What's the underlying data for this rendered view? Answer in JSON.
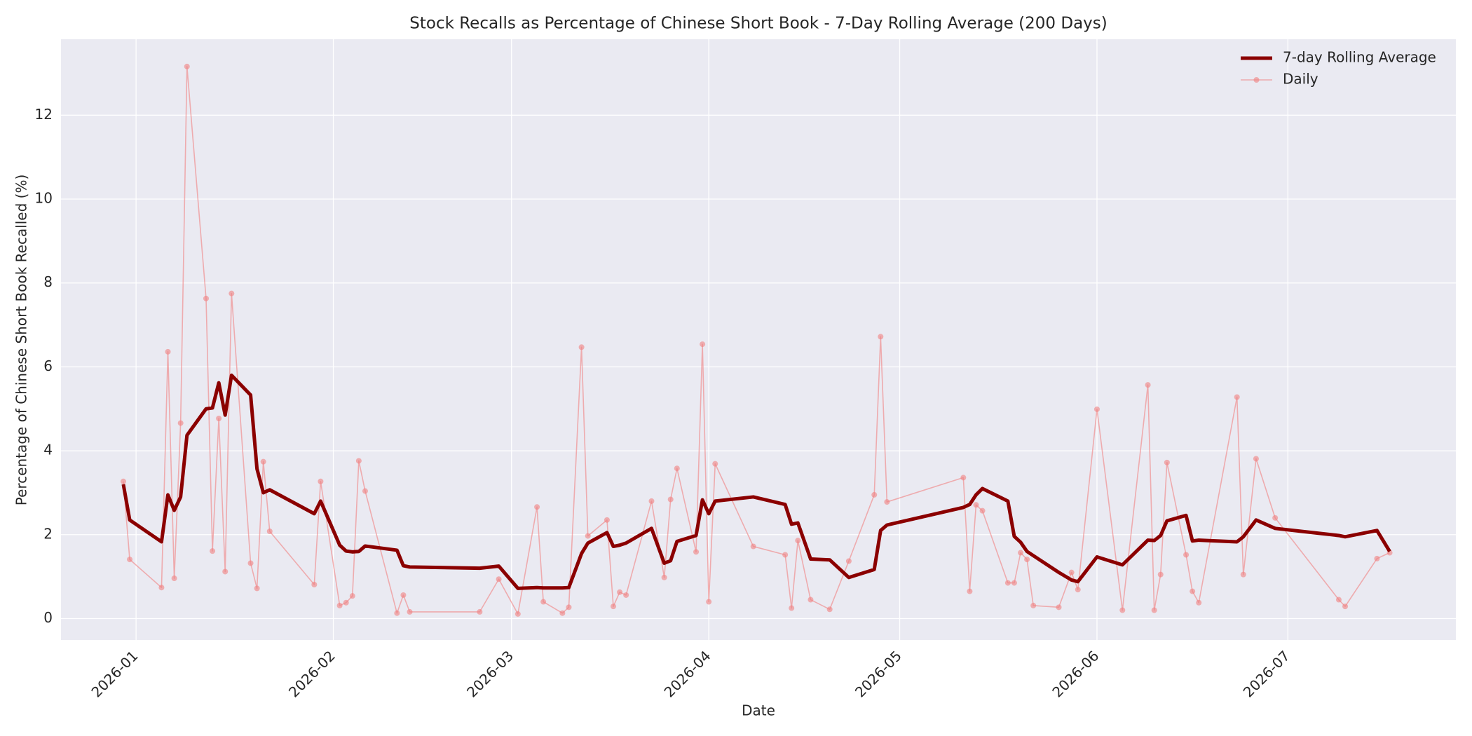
{
  "chart_data": {
    "type": "line",
    "title": "Stock Recalls as Percentage of Chinese Short Book - 7-Day Rolling Average (200 Days)",
    "x_label": "Date",
    "y_label": "Percentage of Chinese Short Book Recalled (%)",
    "x": [
      -2,
      -1,
      4,
      5,
      6,
      7,
      8,
      11,
      12,
      13,
      14,
      15,
      18,
      19,
      20,
      21,
      28,
      29,
      32,
      33,
      34,
      35,
      36,
      41,
      42,
      43,
      54,
      57,
      60,
      63,
      64,
      67,
      68,
      70,
      71,
      74,
      75,
      76,
      77,
      81,
      83,
      84,
      85,
      88,
      89,
      90,
      91,
      97,
      102,
      103,
      104,
      106,
      109,
      112,
      116,
      117,
      118,
      130,
      131,
      132,
      133,
      137,
      138,
      139,
      140,
      141,
      145,
      147,
      148,
      151,
      155,
      159,
      160,
      161,
      162,
      165,
      166,
      167,
      173,
      174,
      176,
      179,
      189,
      190,
      195,
      197
    ],
    "series": [
      {
        "name": "7-day Rolling Average",
        "color": "#8b0000",
        "width": 5,
        "markers": false,
        "values": [
          3.2,
          2.35,
          1.83,
          2.95,
          2.58,
          2.9,
          4.37,
          5.0,
          5.02,
          5.62,
          4.85,
          5.8,
          5.33,
          3.57,
          3.0,
          3.07,
          2.5,
          2.8,
          1.75,
          1.61,
          1.59,
          1.6,
          1.73,
          1.63,
          1.26,
          1.23,
          1.2,
          1.25,
          0.72,
          0.74,
          0.73,
          0.73,
          0.74,
          1.55,
          1.8,
          2.05,
          1.72,
          1.75,
          1.8,
          2.15,
          1.32,
          1.38,
          1.84,
          1.98,
          2.83,
          2.5,
          2.8,
          2.9,
          2.72,
          2.25,
          2.28,
          1.42,
          1.4,
          0.98,
          1.17,
          2.1,
          2.23,
          2.65,
          2.72,
          2.95,
          3.1,
          2.8,
          1.96,
          1.82,
          1.6,
          1.5,
          1.1,
          0.92,
          0.88,
          1.47,
          1.28,
          1.87,
          1.86,
          1.98,
          2.33,
          2.46,
          1.85,
          1.87,
          1.83,
          1.95,
          2.35,
          2.15,
          1.98,
          1.95,
          2.1,
          1.6
        ]
      },
      {
        "name": "Daily",
        "color": "#f08080",
        "width": 1.6,
        "markers": true,
        "values": [
          3.27,
          1.41,
          0.74,
          6.36,
          0.96,
          4.66,
          13.16,
          7.63,
          1.61,
          4.77,
          1.12,
          7.75,
          1.32,
          0.72,
          3.74,
          2.08,
          0.81,
          3.27,
          0.31,
          0.38,
          0.54,
          3.76,
          3.04,
          0.13,
          0.56,
          0.16,
          0.16,
          0.94,
          0.11,
          2.66,
          0.4,
          0.13,
          0.27,
          6.47,
          1.97,
          2.35,
          0.29,
          0.63,
          0.56,
          2.8,
          0.98,
          2.84,
          3.58,
          1.59,
          6.54,
          0.4,
          3.69,
          1.72,
          1.52,
          0.25,
          1.86,
          0.45,
          0.22,
          1.37,
          2.95,
          6.72,
          2.78,
          3.36,
          0.65,
          2.71,
          2.57,
          0.85,
          0.85,
          1.57,
          1.41,
          0.31,
          0.27,
          1.1,
          0.69,
          4.99,
          0.2,
          5.57,
          0.2,
          1.05,
          3.72,
          1.52,
          0.65,
          0.38,
          5.28,
          1.05,
          3.81,
          2.4,
          0.45,
          0.29,
          1.43,
          1.57
        ]
      }
    ],
    "xlim": [
      -11.8,
      207.4
    ],
    "xticks": [
      {
        "value": 0,
        "label": "2026-01"
      },
      {
        "value": 31,
        "label": "2026-02"
      },
      {
        "value": 59,
        "label": "2026-03"
      },
      {
        "value": 90,
        "label": "2026-04"
      },
      {
        "value": 120,
        "label": "2026-05"
      },
      {
        "value": 151,
        "label": "2026-06"
      },
      {
        "value": 181,
        "label": "2026-07"
      }
    ],
    "ylim": [
      -0.51,
      13.81
    ],
    "yticks": [
      0,
      2,
      4,
      6,
      8,
      10,
      12
    ],
    "grid": true,
    "legend": "upper right"
  }
}
